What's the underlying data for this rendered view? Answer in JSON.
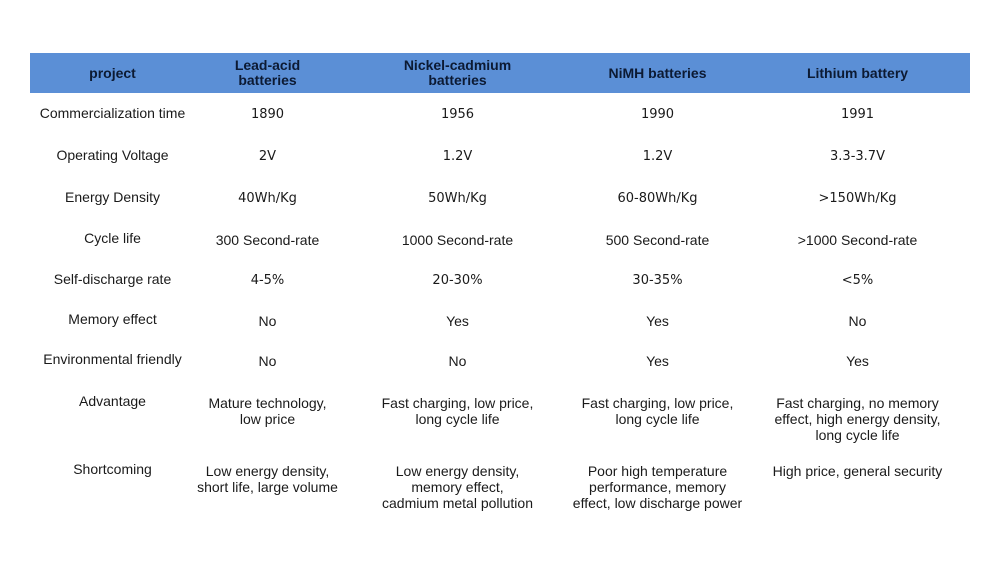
{
  "header": {
    "project": "project",
    "lead_acid": "Lead-acid\nbatteries",
    "nicd": "Nickel-cadmium\nbatteries",
    "nimh": "NiMH batteries",
    "lithium": "Lithium battery"
  },
  "rows": [
    {
      "label": "Commercialization time",
      "values": [
        "1890",
        "1956",
        "1990",
        "1991"
      ]
    },
    {
      "label": "Operating Voltage",
      "values": [
        "2V",
        "1.2V",
        "1.2V",
        "3.3-3.7V"
      ]
    },
    {
      "label": "Energy Density",
      "values": [
        "40Wh/Kg",
        "50Wh/Kg",
        "60-80Wh/Kg",
        ">150Wh/Kg"
      ]
    },
    {
      "label": "Cycle life",
      "values": [
        "300 Second-rate",
        "1000 Second-rate",
        "500 Second-rate",
        ">1000 Second-rate"
      ]
    },
    {
      "label": "Self-discharge rate",
      "values": [
        "4-5%",
        "20-30%",
        "30-35%",
        "<5%"
      ]
    },
    {
      "label": "Memory effect",
      "values": [
        "No",
        "Yes",
        "Yes",
        "No"
      ]
    },
    {
      "label": "Environmental friendly",
      "values": [
        "No",
        "No",
        "Yes",
        "Yes"
      ]
    },
    {
      "label": "Advantage",
      "values": [
        "Mature technology,\nlow price",
        "Fast charging, low price,\nlong cycle life",
        "Fast charging, low price,\nlong cycle life",
        "Fast charging, no memory\neffect, high energy density,\nlong cycle life"
      ]
    },
    {
      "label": "Shortcoming",
      "values": [
        "Low energy density,\nshort life, large volume",
        "Low energy density,\nmemory effect,\ncadmium metal pollution",
        "Poor high temperature\nperformance, memory\neffect, low discharge power",
        "High price, general security"
      ]
    }
  ]
}
